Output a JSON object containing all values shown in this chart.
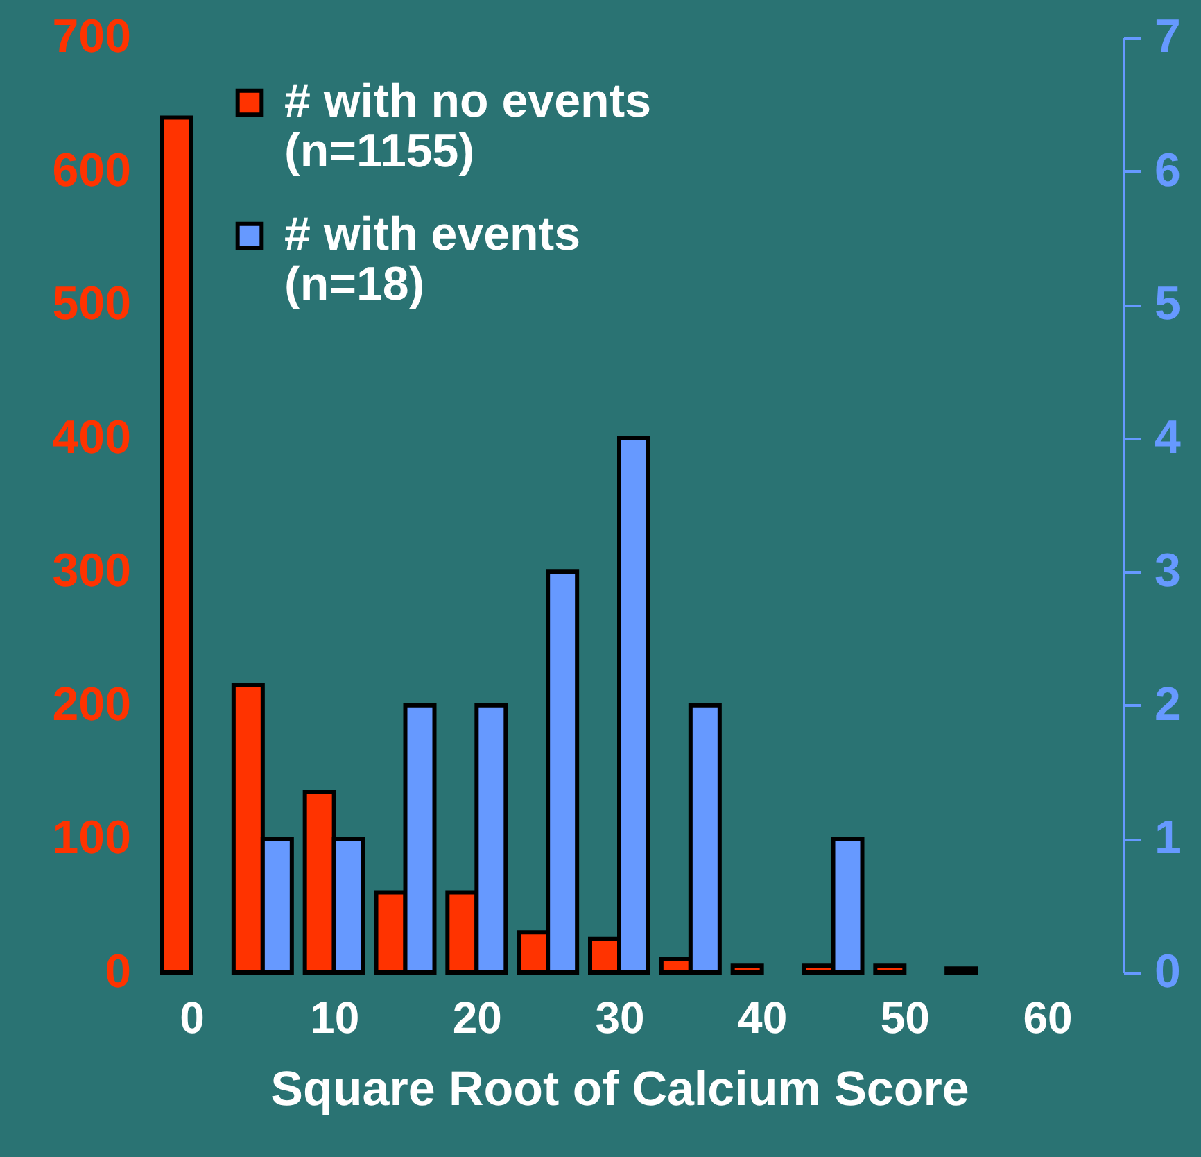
{
  "chart_data": {
    "type": "bar",
    "xlabel": "Square Root of Calcium  Score",
    "x": [
      0,
      5,
      10,
      15,
      20,
      25,
      30,
      35,
      40,
      45,
      50,
      55
    ],
    "xlim": [
      0,
      60
    ],
    "xticks": [
      0,
      10,
      20,
      30,
      40,
      50,
      60
    ],
    "ylim": [
      0,
      700
    ],
    "yticks": [
      0,
      100,
      200,
      300,
      400,
      500,
      600,
      700
    ],
    "y2lim": [
      0,
      7
    ],
    "y2ticks": [
      0,
      1,
      2,
      3,
      4,
      5,
      6,
      7
    ],
    "legend": "top left",
    "series": [
      {
        "name": "# with no events (n=1155)",
        "color": "#ff3300",
        "values": [
          640,
          215,
          135,
          60,
          60,
          30,
          25,
          10,
          5,
          5,
          5,
          3
        ]
      },
      {
        "name": "# with events (n=18)",
        "color": "#6699ff",
        "axis": "y2",
        "values": [
          null,
          1,
          1,
          2,
          2,
          3,
          4,
          2,
          null,
          1,
          null,
          null
        ]
      }
    ]
  }
}
